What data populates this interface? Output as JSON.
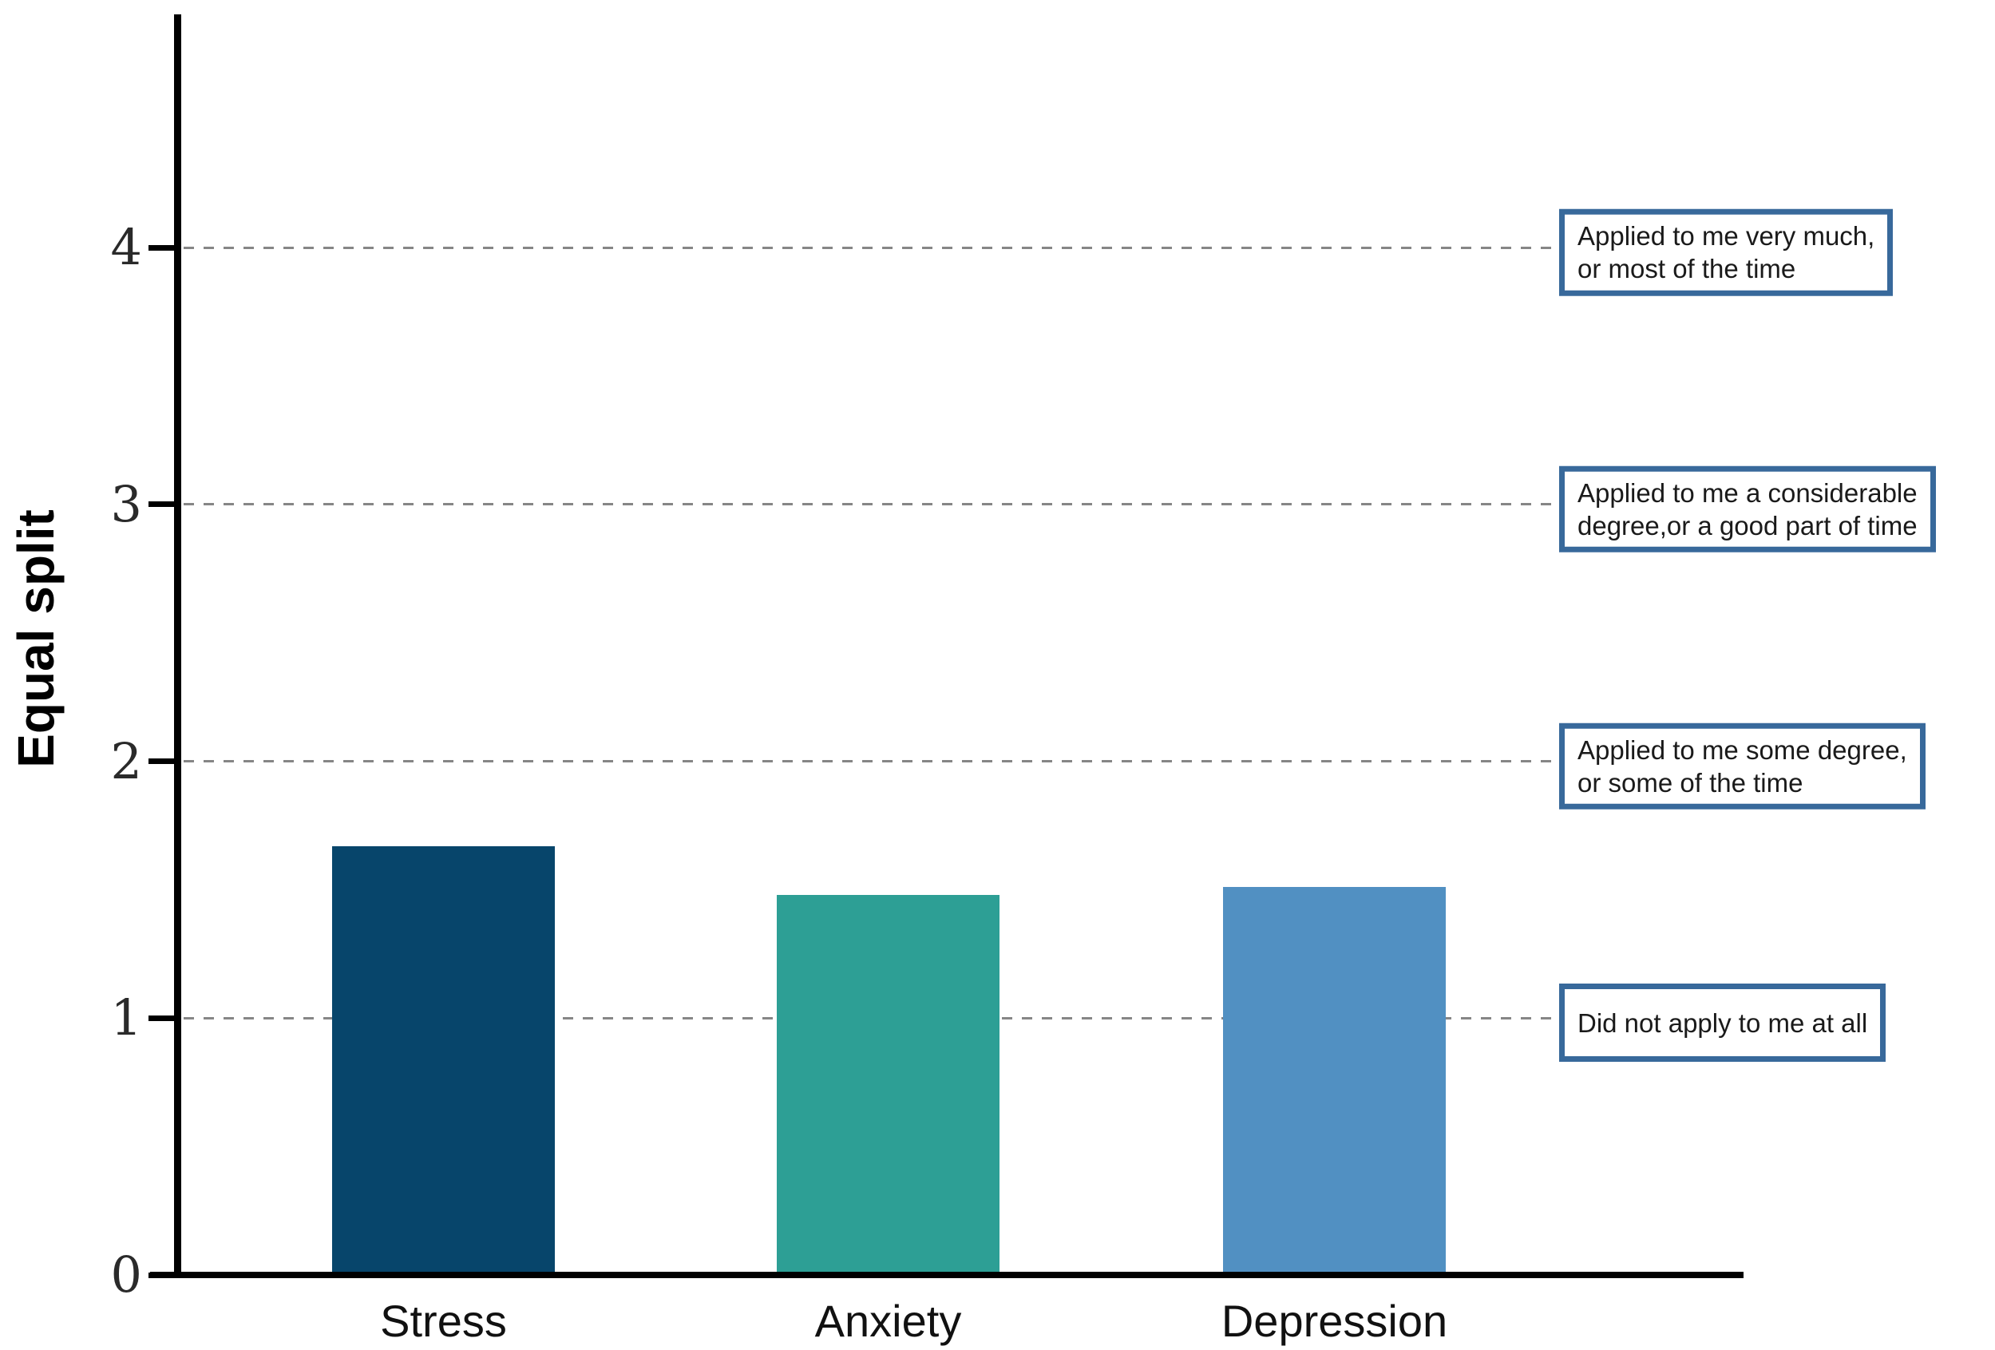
{
  "figure": {
    "background": "#ffffff",
    "axis_color": "#000000",
    "gridline_color": "#868686",
    "gridline_style": "dashed"
  },
  "chart_data": {
    "type": "bar",
    "title": "",
    "xlabel": "",
    "ylabel": "Equal split",
    "categories": [
      "Stress",
      "Anxiety",
      "Depression"
    ],
    "values": [
      1.67,
      1.48,
      1.51
    ],
    "bar_colors": [
      "#07456B",
      "#2D9F95",
      "#5190C2"
    ],
    "ylim": [
      0,
      4.9
    ],
    "yticks": [
      0,
      1,
      2,
      3,
      4
    ],
    "grid": "horizontal dashed gridlines at y = 1, 2, 3, 4",
    "legend_position": "none",
    "annotation_border_color": "#38699B",
    "annotations": [
      {
        "y": 4,
        "lines": [
          "Applied to me very much,",
          "or most of the time"
        ]
      },
      {
        "y": 3,
        "lines": [
          "Applied to me a considerable",
          "degree,or a good part of time"
        ]
      },
      {
        "y": 2,
        "lines": [
          "Applied to me some degree,",
          "or some of the time"
        ]
      },
      {
        "y": 1,
        "lines": [
          "Did not apply to me at all"
        ]
      }
    ]
  }
}
